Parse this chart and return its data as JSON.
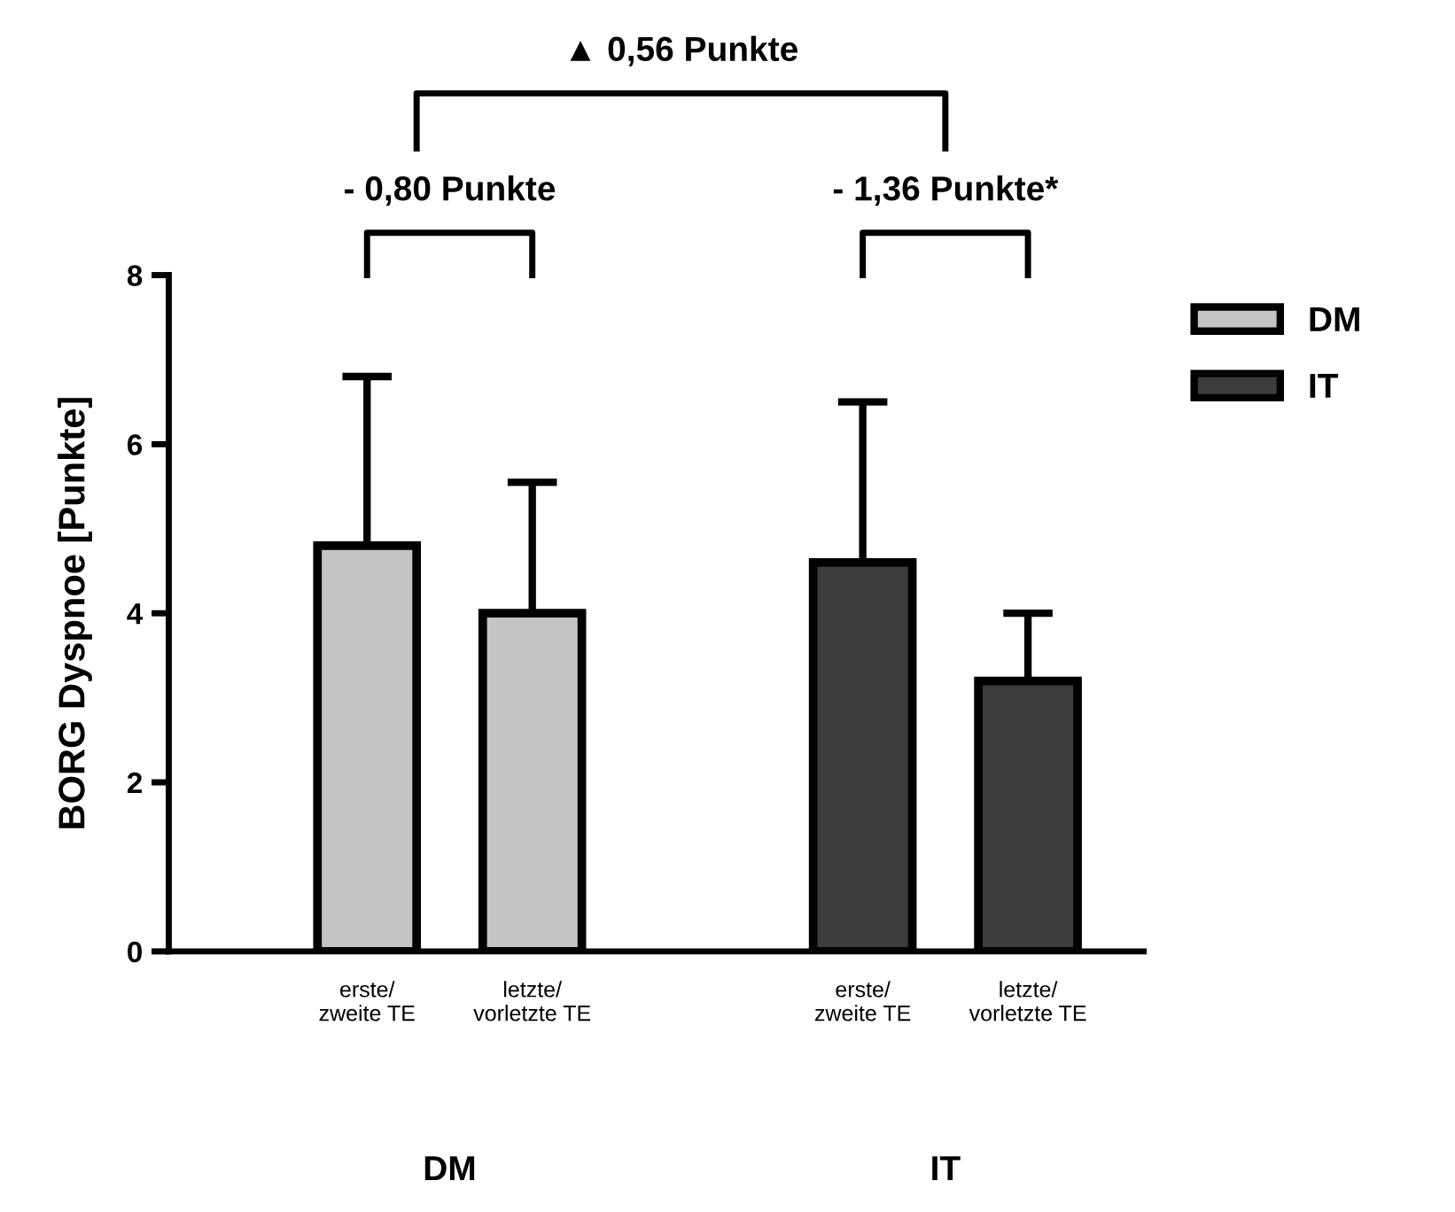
{
  "chart_data": {
    "type": "bar",
    "ylabel": "BORG Dyspnoe [Punkte]",
    "categories": [
      "erste/\nzweite TE",
      "letzte/\nvorletzte TE",
      null,
      "erste/\nzweite TE",
      "letzte/\nvorletzte TE"
    ],
    "series": [
      {
        "name": "DM",
        "color": "#c4c4c4",
        "values": [
          4.8,
          4.0,
          null,
          null,
          null
        ],
        "errors": [
          [
            4.8,
            6.8
          ],
          [
            4.0,
            5.55
          ],
          null,
          null,
          null
        ]
      },
      {
        "name": "IT",
        "color": "#3c3c3c",
        "values": [
          null,
          null,
          null,
          4.6,
          3.2
        ],
        "errors": [
          null,
          null,
          null,
          [
            4.6,
            6.5
          ],
          [
            3.2,
            4.0
          ]
        ]
      }
    ],
    "ylim": [
      0,
      8
    ],
    "yticks": [
      0,
      2,
      4,
      6,
      8
    ],
    "legend": "right",
    "annotations": [
      "- 0,80 Punkte",
      "- 1,36 Punkte*",
      "▲ 0,56 Punkte",
      "DM",
      "IT"
    ]
  }
}
